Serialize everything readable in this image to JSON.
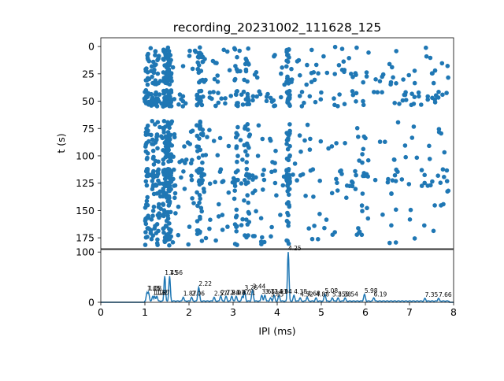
{
  "title": "recording_20231002_111628_125",
  "chart_data": [
    {
      "type": "scatter",
      "panel": "raster",
      "ylabel": "t (s)",
      "xlim": [
        0,
        8
      ],
      "ylim": [
        185,
        -8
      ],
      "y_inverted": true,
      "yticks": [
        "0",
        "25",
        "50",
        "75",
        "100",
        "125",
        "150",
        "175"
      ],
      "color": "#1f77b4",
      "dense_columns_x": [
        1.05,
        1.18,
        1.27,
        1.45,
        1.52,
        1.56,
        2.22,
        2.28,
        3.07,
        3.33,
        4.25
      ],
      "note_free_text": ""
    },
    {
      "type": "line",
      "panel": "histogram",
      "xlabel": "IPI (ms)",
      "xlim": [
        0,
        8
      ],
      "ylim": [
        0,
        105
      ],
      "xticks": [
        "0",
        "1",
        "2",
        "3",
        "4",
        "5",
        "6",
        "7",
        "8"
      ],
      "yticks": [
        "0",
        "100"
      ],
      "color": "#1f77b4",
      "peaks": [
        {
          "x": 1.05,
          "y": 20,
          "label": "1.05"
        },
        {
          "x": 1.08,
          "y": 20,
          "label": "1.08"
        },
        {
          "x": 1.18,
          "y": 12,
          "label": "1.18"
        },
        {
          "x": 1.22,
          "y": 12,
          "label": "1.22"
        },
        {
          "x": 1.27,
          "y": 12,
          "label": "1.27"
        },
        {
          "x": 1.45,
          "y": 52,
          "label": "1.45"
        },
        {
          "x": 1.56,
          "y": 52,
          "label": "1.56"
        },
        {
          "x": 1.87,
          "y": 10,
          "label": "1.87"
        },
        {
          "x": 2.06,
          "y": 10,
          "label": "2.06"
        },
        {
          "x": 2.22,
          "y": 30,
          "label": "2.22"
        },
        {
          "x": 2.57,
          "y": 10,
          "label": "2.57"
        },
        {
          "x": 2.72,
          "y": 12,
          "label": "2.72"
        },
        {
          "x": 2.84,
          "y": 12,
          "label": "2.84"
        },
        {
          "x": 2.97,
          "y": 12,
          "label": "2.97"
        },
        {
          "x": 3.07,
          "y": 12,
          "label": "3.07"
        },
        {
          "x": 3.21,
          "y": 12,
          "label": "3.21"
        },
        {
          "x": 3.26,
          "y": 22,
          "label": "3.26"
        },
        {
          "x": 3.44,
          "y": 24,
          "label": "3.44"
        },
        {
          "x": 3.65,
          "y": 14,
          "label": "3.65"
        },
        {
          "x": 3.72,
          "y": 14,
          "label": "3.72"
        },
        {
          "x": 3.85,
          "y": 9,
          "label": "3.85"
        },
        {
          "x": 3.93,
          "y": 14,
          "label": "3.93"
        },
        {
          "x": 4.04,
          "y": 14,
          "label": "4.04"
        },
        {
          "x": 4.25,
          "y": 100,
          "label": "4.25"
        },
        {
          "x": 4.38,
          "y": 14,
          "label": "4.38"
        },
        {
          "x": 4.52,
          "y": 9,
          "label": "4.52"
        },
        {
          "x": 4.68,
          "y": 10,
          "label": "4.68"
        },
        {
          "x": 4.88,
          "y": 9,
          "label": "4.88"
        },
        {
          "x": 5.08,
          "y": 16,
          "label": "5.08"
        },
        {
          "x": 5.25,
          "y": 9,
          "label": "5.25"
        },
        {
          "x": 5.38,
          "y": 9,
          "label": "5.38"
        },
        {
          "x": 5.54,
          "y": 9,
          "label": "5.54"
        },
        {
          "x": 5.98,
          "y": 16,
          "label": "5.98"
        },
        {
          "x": 6.19,
          "y": 9,
          "label": "6.19"
        },
        {
          "x": 7.35,
          "y": 8,
          "label": "7.35"
        },
        {
          "x": 7.66,
          "y": 8,
          "label": "7.66"
        }
      ]
    }
  ]
}
